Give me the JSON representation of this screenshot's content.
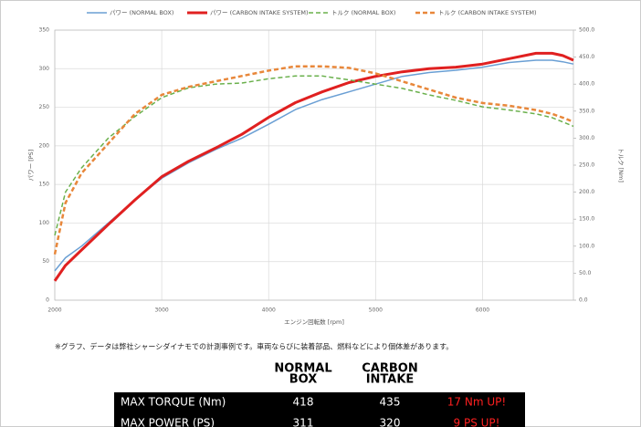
{
  "chart_data": {
    "type": "line",
    "x_label": "エンジン回転数 [rpm]",
    "y_label": "パワー [PS]",
    "y2_label": "トルク [Nm]",
    "x": [
      2000,
      2100,
      2250,
      2500,
      2750,
      3000,
      3250,
      3500,
      3750,
      4000,
      4250,
      4500,
      4750,
      5000,
      5250,
      5500,
      5750,
      6000,
      6250,
      6500,
      6650,
      6750,
      6850
    ],
    "xlim": [
      2000,
      6850
    ],
    "xticks": [
      2000,
      3000,
      4000,
      5000,
      6000
    ],
    "ylim": [
      0,
      350
    ],
    "yticks": [
      0,
      50,
      100,
      150,
      200,
      250,
      300,
      350
    ],
    "y2lim": [
      0,
      500
    ],
    "y2ticks": [
      {
        "value": 0,
        "label": "0.0"
      },
      {
        "value": 50,
        "label": "50.0"
      },
      {
        "value": 100,
        "label": "100.0"
      },
      {
        "value": 150,
        "label": "150.0"
      },
      {
        "value": 200,
        "label": "200.0"
      },
      {
        "value": 250,
        "label": "250.0"
      },
      {
        "value": 300,
        "label": "300.0"
      },
      {
        "value": 350,
        "label": "350.0"
      },
      {
        "value": 400,
        "label": "400.0"
      },
      {
        "value": 450,
        "label": "450.0"
      },
      {
        "value": 500,
        "label": "500.0"
      }
    ],
    "grid": true,
    "series": [
      {
        "name": "パワー (NORMAL BOX)",
        "color": "#6a9fd4",
        "style": "solid",
        "width": 1.5,
        "values": [
          38,
          55,
          70,
          100,
          130,
          158,
          178,
          195,
          210,
          228,
          247,
          260,
          270,
          280,
          290,
          295,
          298,
          302,
          308,
          311,
          311,
          309,
          306
        ]
      },
      {
        "name": "パワー (CARBON INTAKE SYSTEM)",
        "color": "#e02020",
        "style": "solid",
        "width": 3,
        "values": [
          25,
          45,
          65,
          98,
          130,
          160,
          180,
          197,
          215,
          237,
          256,
          270,
          282,
          290,
          296,
          300,
          302,
          306,
          313,
          320,
          320,
          317,
          311
        ]
      },
      {
        "name": "トルク (NORMAL BOX)",
        "color": "#6ab04c",
        "style": "dashed",
        "width": 1.5,
        "axis": "y2",
        "values": [
          120,
          200,
          245,
          300,
          340,
          375,
          393,
          400,
          402,
          410,
          415,
          415,
          408,
          400,
          392,
          380,
          370,
          358,
          352,
          345,
          338,
          330,
          322
        ]
      },
      {
        "name": "トルク (CARBON INTAKE SYSTEM)",
        "color": "#e8873a",
        "style": "dashed",
        "width": 2.5,
        "axis": "y2",
        "values": [
          85,
          180,
          235,
          290,
          345,
          380,
          395,
          405,
          415,
          425,
          433,
          433,
          430,
          420,
          405,
          390,
          375,
          365,
          360,
          352,
          345,
          338,
          330
        ]
      }
    ]
  },
  "note": "※グラフ、データは弊社シャーシダイナモでの計測事例です。車両ならびに装着部品、燃料などにより個体差があります。",
  "table": {
    "headers": [
      [
        "NORMAL",
        "BOX"
      ],
      [
        "CARBON",
        "INTAKE"
      ]
    ],
    "rows": [
      [
        "MAX TORQUE (Nm)",
        "418",
        "435",
        "17 Nm UP!"
      ],
      [
        "MAX POWER (PS)",
        "311",
        "320",
        "9 PS UP!"
      ]
    ]
  }
}
